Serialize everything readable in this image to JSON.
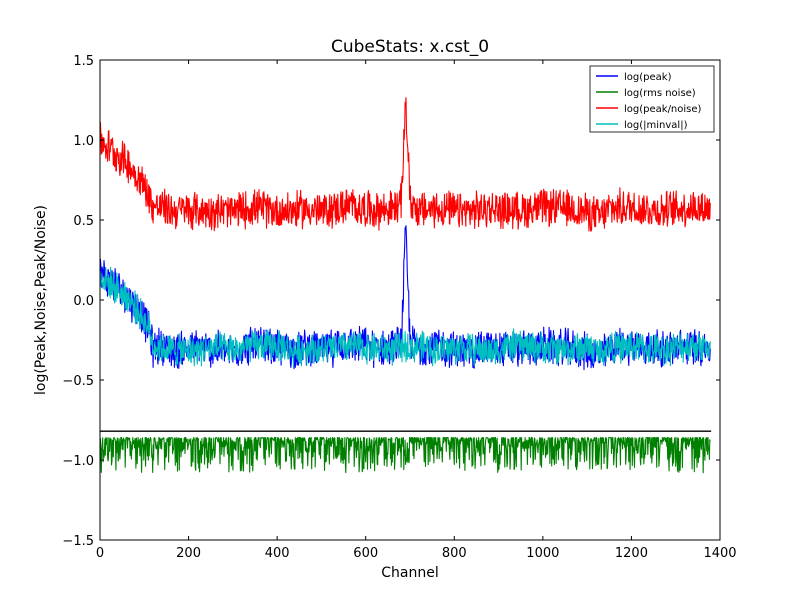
{
  "chart_data": {
    "type": "line",
    "title": "CubeStats: x.cst_0",
    "xlabel": "Channel",
    "ylabel": "log(Peak,Noise,Peak/Noise)",
    "xlim": [
      0,
      1400
    ],
    "ylim": [
      -1.5,
      1.5
    ],
    "x_ticks": [
      0,
      200,
      400,
      600,
      800,
      1000,
      1200,
      1400
    ],
    "y_ticks": [
      -1.5,
      -1.0,
      -0.5,
      0.0,
      0.5,
      1.0,
      1.5
    ],
    "x_tick_labels": [
      "0",
      "200",
      "400",
      "600",
      "800",
      "1000",
      "1200",
      "1400"
    ],
    "y_tick_labels": [
      "−1.5",
      "−1.0",
      "−0.5",
      "0.0",
      "0.5",
      "1.0",
      "1.5"
    ],
    "grid": false,
    "legend_position": "top-right",
    "reference_line": {
      "y": -0.82,
      "x_range": [
        0,
        1380
      ],
      "color": "#000000"
    },
    "series": [
      {
        "name": "log(peak)",
        "color": "#0000ff",
        "x": [
          0,
          30,
          60,
          90,
          110,
          120,
          140,
          160,
          200,
          260,
          300,
          340,
          400,
          440,
          470,
          500,
          560,
          620,
          660,
          680,
          685,
          690,
          695,
          700,
          720,
          760,
          820,
          880,
          940,
          1000,
          1060,
          1100,
          1130,
          1150,
          1200,
          1260,
          1300,
          1340,
          1378
        ],
        "y": [
          0.17,
          0.1,
          0.03,
          -0.08,
          -0.18,
          -0.3,
          -0.28,
          -0.32,
          -0.3,
          -0.31,
          -0.32,
          -0.28,
          -0.3,
          -0.31,
          -0.29,
          -0.32,
          -0.27,
          -0.3,
          -0.3,
          -0.26,
          0.05,
          0.43,
          0.1,
          -0.25,
          -0.3,
          -0.29,
          -0.32,
          -0.3,
          -0.31,
          -0.29,
          -0.3,
          -0.32,
          -0.35,
          -0.3,
          -0.28,
          -0.31,
          -0.3,
          -0.29,
          -0.3
        ]
      },
      {
        "name": "log(rms noise)",
        "color": "#008000",
        "x": [
          0,
          1378
        ],
        "y": [
          -0.86,
          -0.86
        ]
      },
      {
        "name": "log(peak/noise)",
        "color": "#ff0000",
        "x": [
          0,
          30,
          60,
          90,
          110,
          120,
          140,
          160,
          200,
          260,
          300,
          340,
          400,
          440,
          470,
          500,
          560,
          620,
          660,
          680,
          685,
          690,
          695,
          700,
          720,
          760,
          820,
          880,
          940,
          1000,
          1060,
          1100,
          1130,
          1150,
          1200,
          1260,
          1300,
          1340,
          1378
        ],
        "y": [
          1.0,
          0.93,
          0.86,
          0.75,
          0.66,
          0.58,
          0.58,
          0.56,
          0.56,
          0.56,
          0.55,
          0.58,
          0.56,
          0.56,
          0.57,
          0.55,
          0.59,
          0.56,
          0.57,
          0.6,
          0.9,
          1.27,
          0.95,
          0.62,
          0.56,
          0.57,
          0.55,
          0.57,
          0.56,
          0.58,
          0.57,
          0.55,
          0.52,
          0.57,
          0.58,
          0.56,
          0.57,
          0.58,
          0.57
        ]
      },
      {
        "name": "log(|minval|)",
        "color": "#00bfbf",
        "x": [
          0,
          30,
          60,
          90,
          110,
          120,
          140,
          160,
          200,
          260,
          300,
          340,
          400,
          440,
          470,
          500,
          560,
          620,
          660,
          680,
          685,
          690,
          695,
          700,
          720,
          760,
          820,
          880,
          940,
          1000,
          1060,
          1100,
          1130,
          1150,
          1200,
          1260,
          1300,
          1340,
          1378
        ],
        "y": [
          0.15,
          0.09,
          0.02,
          -0.08,
          -0.18,
          -0.28,
          -0.3,
          -0.31,
          -0.32,
          -0.3,
          -0.31,
          -0.29,
          -0.28,
          -0.32,
          -0.3,
          -0.31,
          -0.29,
          -0.3,
          -0.31,
          -0.3,
          -0.28,
          -0.29,
          -0.28,
          -0.3,
          -0.29,
          -0.31,
          -0.3,
          -0.32,
          -0.28,
          -0.3,
          -0.31,
          -0.29,
          -0.32,
          -0.3,
          -0.29,
          -0.31,
          -0.3,
          -0.28,
          -0.3
        ]
      }
    ]
  }
}
